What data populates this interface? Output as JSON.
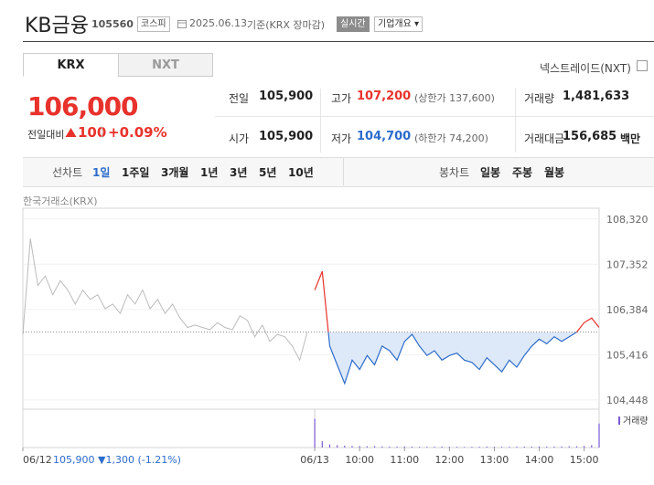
{
  "header": {
    "name": "KB금융",
    "code": "105560",
    "market": "코스피",
    "date": "2025.06.13",
    "basis": "기준(KRX 장마감)",
    "realtime": "실시간",
    "company_info": "기업개요"
  },
  "exchange_tabs": [
    "KRX",
    "NXT"
  ],
  "nxt_toggle": "넥스트레이드(NXT)",
  "quote": {
    "price": "106,000",
    "change_label": "전일대비",
    "change": "100",
    "change_rate": "+0.09%"
  },
  "stats": [
    [
      {
        "label": "전일",
        "value": "105,900"
      },
      {
        "label": "고가",
        "value": "107,200",
        "note": "(상한가 137,600)",
        "color": "#e8322c"
      },
      {
        "label": "거래량",
        "value": "1,481,633"
      }
    ],
    [
      {
        "label": "시가",
        "value": "105,900"
      },
      {
        "label": "저가",
        "value": "104,700",
        "note": "(하한가 74,200)",
        "color": "#2d6ccb"
      },
      {
        "label": "거래대금",
        "value": "156,685",
        "unit": "백만"
      }
    ]
  ],
  "chart_tabs": {
    "line_label": "선차트",
    "periods": [
      "1일",
      "1주일",
      "3개월",
      "1년",
      "3년",
      "5년",
      "10년"
    ],
    "selected_period": 0,
    "candle_label": "봉차트",
    "candles": [
      "일봉",
      "주봉",
      "월봉"
    ]
  },
  "chart_data": {
    "type": "line",
    "source": "한국거래소(KRX)",
    "xlim": [
      0,
      770
    ],
    "xticks": [
      {
        "value": 0,
        "label": "06/12"
      },
      {
        "value": 390,
        "label": "06/13"
      },
      {
        "value": 450,
        "label": "10:00"
      },
      {
        "value": 510,
        "label": "11:00"
      },
      {
        "value": 570,
        "label": "12:00"
      },
      {
        "value": 630,
        "label": "13:00"
      },
      {
        "value": 690,
        "label": "14:00"
      },
      {
        "value": 750,
        "label": "15:00"
      }
    ],
    "ylim": [
      104250,
      108550
    ],
    "yticks": [
      {
        "value": 104448,
        "label": "104,448"
      },
      {
        "value": 105416,
        "label": "105,416"
      },
      {
        "value": 106384,
        "label": "106,384"
      },
      {
        "value": 107352,
        "label": "107,352"
      },
      {
        "value": 108320,
        "label": "108,320"
      }
    ],
    "grid": true,
    "reference_line": 105900,
    "series": [
      {
        "color": "#bbbbbb",
        "x": [
          0,
          10,
          20,
          30,
          40,
          50,
          60,
          70,
          80,
          90,
          100,
          110,
          120,
          130,
          140,
          150,
          160,
          170,
          180,
          190,
          200,
          210,
          220,
          230,
          240,
          250,
          260,
          270,
          280,
          290,
          300,
          310,
          320,
          330,
          340,
          350,
          360,
          370,
          380
        ],
        "values": [
          105850,
          107900,
          106900,
          107100,
          106700,
          107000,
          106800,
          106500,
          106800,
          106600,
          106700,
          106400,
          106500,
          106300,
          106700,
          106500,
          106800,
          106400,
          106600,
          106300,
          106500,
          106200,
          106000,
          106050,
          106000,
          105950,
          106100,
          106000,
          105950,
          106250,
          106150,
          105800,
          106050,
          105700,
          105850,
          105800,
          105600,
          105300,
          105900
        ]
      },
      {
        "color_up": "#e8322c",
        "color_down": "#2d6ccb",
        "fill_down": "#dde9f8",
        "x": [
          390,
          400,
          410,
          420,
          430,
          440,
          450,
          460,
          470,
          480,
          490,
          500,
          510,
          520,
          530,
          540,
          550,
          560,
          570,
          580,
          590,
          600,
          610,
          620,
          630,
          640,
          650,
          660,
          670,
          680,
          690,
          700,
          710,
          720,
          730,
          740,
          750,
          760,
          770
        ],
        "values": [
          106800,
          107200,
          105600,
          105200,
          104800,
          105300,
          105100,
          105400,
          105200,
          105600,
          105500,
          105300,
          105700,
          105850,
          105600,
          105400,
          105500,
          105300,
          105400,
          105450,
          105300,
          105250,
          105100,
          105350,
          105200,
          105050,
          105300,
          105150,
          105400,
          105600,
          105750,
          105650,
          105800,
          105700,
          105800,
          105900,
          106100,
          106200,
          106000
        ]
      }
    ],
    "volume": {
      "name": "거래량",
      "color": "#7a5bd6",
      "ylim": [
        0,
        200000
      ],
      "x": [
        390,
        400,
        410,
        420,
        430,
        440,
        450,
        460,
        470,
        480,
        490,
        500,
        510,
        520,
        530,
        540,
        550,
        560,
        570,
        580,
        590,
        600,
        610,
        620,
        630,
        640,
        650,
        660,
        670,
        680,
        690,
        700,
        710,
        720,
        730,
        740,
        750,
        760,
        770
      ],
      "values": [
        180000,
        40000,
        20000,
        15000,
        12000,
        10000,
        9000,
        8000,
        9000,
        7000,
        6000,
        6000,
        7000,
        6000,
        5000,
        5000,
        5000,
        6000,
        5000,
        5000,
        4000,
        5000,
        5000,
        6000,
        5000,
        5000,
        5000,
        5000,
        6000,
        6000,
        7000,
        6000,
        6000,
        7000,
        8000,
        8000,
        10000,
        15000,
        150000
      ]
    },
    "prev_day": {
      "close": "105,900",
      "change": "▼1,300",
      "rate": "(-1.21%)",
      "color": "#2d6ccb"
    }
  }
}
